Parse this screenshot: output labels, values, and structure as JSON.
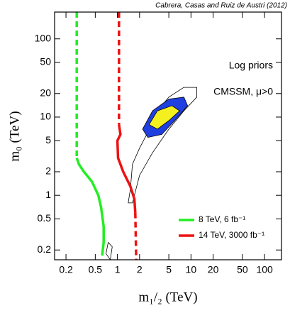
{
  "chart_data": {
    "type": "line",
    "xscale": "log",
    "yscale": "log",
    "note": "Cabrera, Casas and Ruiz de Austri (2012)",
    "annotations": [
      "Log priors",
      "CMSSM, μ>0"
    ],
    "xlabel": "m₁/₂ (TeV)",
    "ylabel": "m₀ (TeV)",
    "xlim": [
      0.14,
      170
    ],
    "ylim": [
      0.15,
      220
    ],
    "xticks": [
      0.2,
      0.5,
      1,
      2,
      5,
      10,
      20,
      50,
      100
    ],
    "yticks": [
      0.2,
      0.5,
      1,
      2,
      5,
      10,
      20,
      50,
      100
    ],
    "legend": "lower right",
    "series": [
      {
        "name": "8 TeV, 6 fb⁻¹",
        "color": "#22ee22",
        "segments": [
          {
            "style": "dashed",
            "x": [
              0.28,
              0.28
            ],
            "y": [
              220,
              3
            ]
          },
          {
            "style": "solid",
            "x": [
              0.28,
              0.3,
              0.35,
              0.45,
              0.55,
              0.6,
              0.65,
              0.65,
              0.62
            ],
            "y": [
              3,
              2.5,
              2,
              1.5,
              1,
              0.7,
              0.4,
              0.25,
              0.17
            ]
          }
        ]
      },
      {
        "name": "14 TeV, 3000 fb⁻¹",
        "color": "#ee1111",
        "segments": [
          {
            "style": "dashed",
            "x": [
              1.05,
              1.05
            ],
            "y": [
              220,
              8
            ]
          },
          {
            "style": "solid",
            "x": [
              1.05,
              1.1,
              1.0,
              1.02,
              1.2,
              1.5,
              1.7,
              1.75
            ],
            "y": [
              8,
              6,
              5,
              3,
              2,
              1.3,
              0.9,
              0.6
            ]
          },
          {
            "style": "dashed",
            "x": [
              1.75,
              1.8
            ],
            "y": [
              0.6,
              0.15
            ]
          }
        ]
      }
    ],
    "contours": [
      {
        "fill": "none",
        "x": [
          1.4,
          1.5,
          1.6,
          2,
          2.5,
          3.5,
          5,
          8,
          12,
          12,
          8,
          5,
          3,
          2,
          1.6
        ],
        "y": [
          0.8,
          1.2,
          2.5,
          4,
          6,
          12,
          18,
          24,
          24,
          18,
          12,
          7,
          3.5,
          1.8,
          0.8
        ]
      },
      {
        "fill": "#1f3fe0",
        "x": [
          2.2,
          3,
          5,
          8,
          9,
          6,
          4,
          2.6
        ],
        "y": [
          7,
          12,
          17,
          18,
          14,
          9,
          6,
          5.5
        ]
      },
      {
        "fill": "#f4f020",
        "x": [
          2.7,
          3.5,
          5.5,
          7,
          5,
          3.5
        ],
        "y": [
          8,
          12,
          14,
          12,
          9,
          7
        ]
      },
      {
        "fill": "none",
        "x": [
          0.7,
          0.75,
          0.85,
          0.8
        ],
        "y": [
          0.18,
          0.25,
          0.22,
          0.15
        ]
      }
    ]
  }
}
